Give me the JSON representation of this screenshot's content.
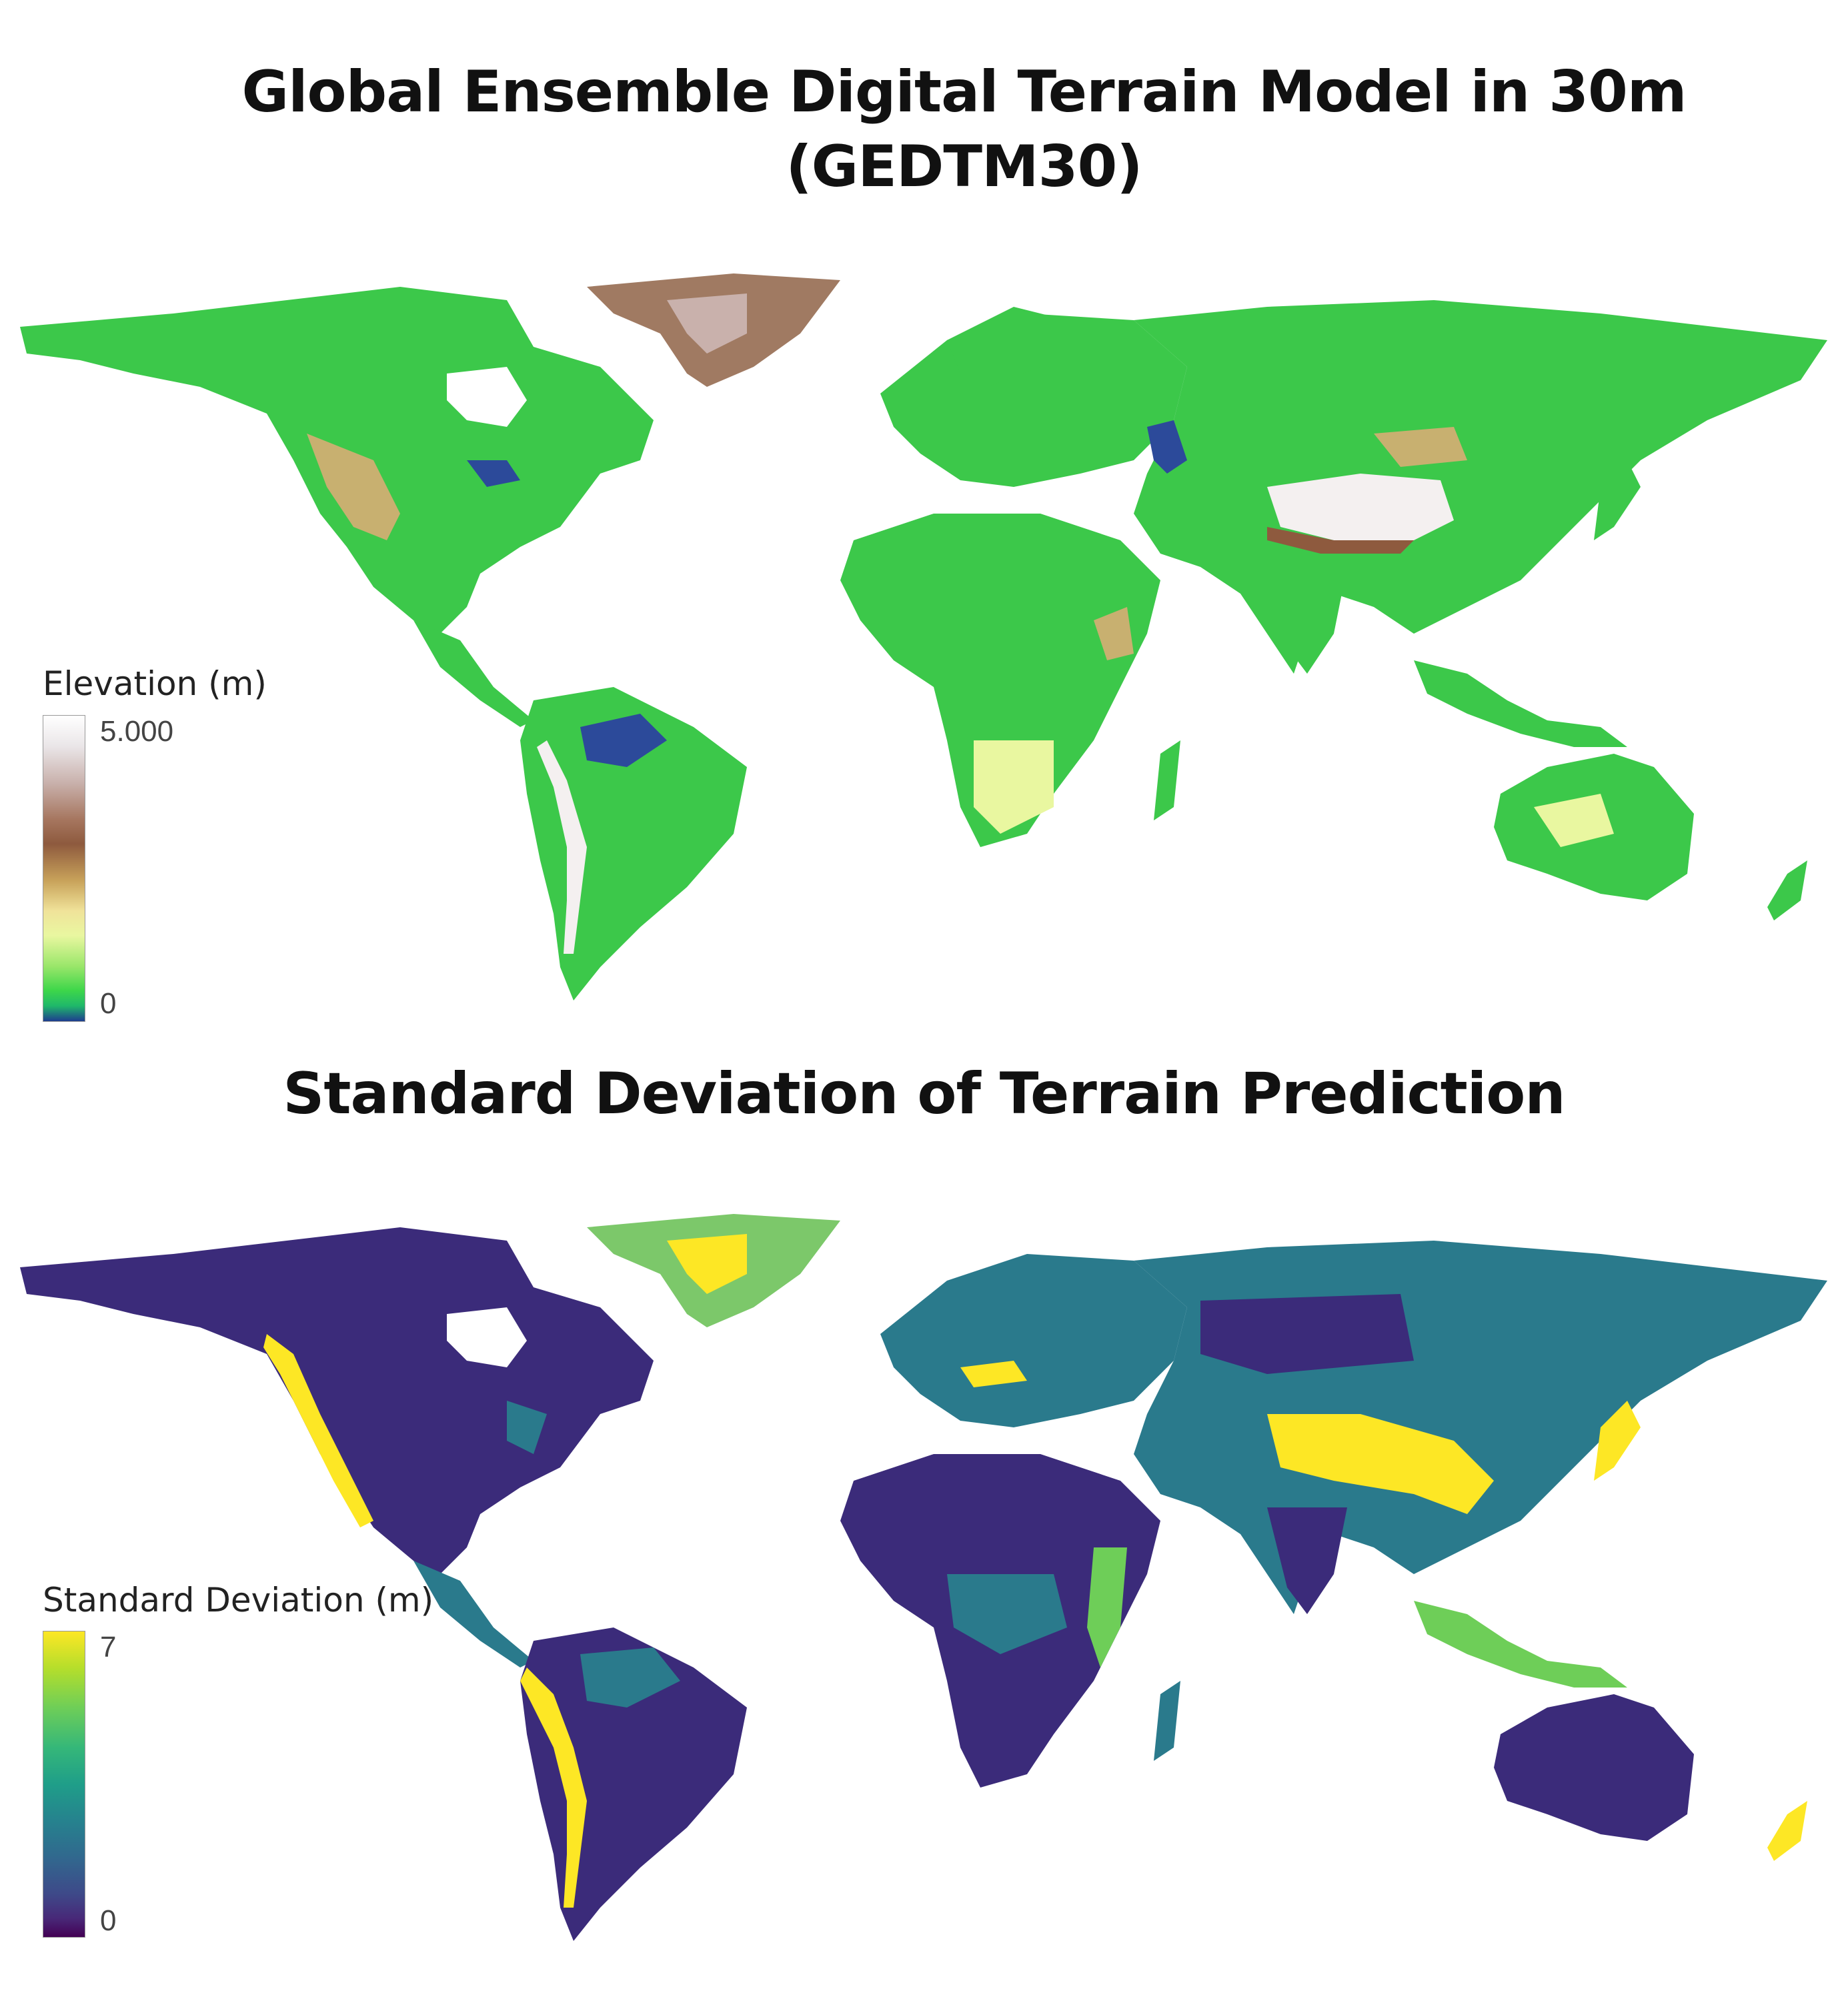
{
  "maps": [
    {
      "title_line1": "Global Ensemble Digital Terrain Model in 30m",
      "title_line2": "(GEDTM30)",
      "legend": {
        "title": "Elevation (m)",
        "max_label": "5.000",
        "min_label": "0",
        "colors": [
          "#ffffff",
          "#a6765f",
          "#f0e39a",
          "#3dd64a",
          "#1e3d8f"
        ]
      },
      "palette": {
        "lowland": "#3cc84a",
        "highland": "#c8b070",
        "mountain": "#8e5a3e",
        "peak": "#f4f0f0",
        "lake": "#2c4a9a",
        "greenland_ice": "#a07a62"
      }
    },
    {
      "title": "Standard Deviation of Terrain Prediction",
      "legend": {
        "title": "Standard Deviation (m)",
        "max_label": "7",
        "min_label": "0",
        "colors": [
          "#fde725",
          "#35b779",
          "#31688e",
          "#440154"
        ]
      },
      "palette": {
        "low": "#3b2b7a",
        "mid": "#2a7a8c",
        "high": "#fde725",
        "greenland": "#7cc86a"
      }
    }
  ]
}
